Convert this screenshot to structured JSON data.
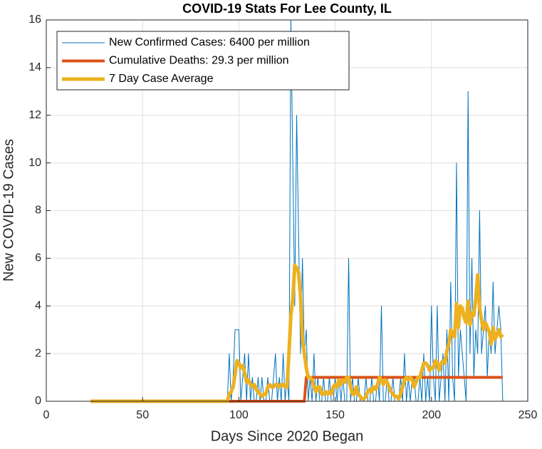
{
  "chart_data": {
    "type": "line",
    "title": "COVID-19 Stats For Lee County, IL",
    "xlabel": "Days Since 2020 Began",
    "ylabel": "New COVID-19 Cases",
    "xlim": [
      0,
      250
    ],
    "xticks": [
      0,
      50,
      100,
      150,
      200,
      250
    ],
    "ylim": [
      0,
      16
    ],
    "yticks": [
      0,
      2,
      4,
      6,
      8,
      10,
      12,
      14,
      16
    ],
    "grid": true,
    "legend": "northwest",
    "series": [
      {
        "name": "New Confirmed Cases: 6400 per million",
        "color": "#0072bd",
        "line_width": 1,
        "x": [
          23,
          93,
          94,
          95,
          96,
          97,
          98,
          99,
          100,
          101,
          102,
          103,
          104,
          105,
          106,
          107,
          108,
          109,
          110,
          111,
          112,
          113,
          114,
          115,
          116,
          117,
          118,
          119,
          120,
          121,
          122,
          123,
          124,
          125,
          126,
          127,
          128,
          129,
          130,
          131,
          132,
          133,
          134,
          135,
          136,
          137,
          138,
          139,
          140,
          141,
          142,
          143,
          144,
          145,
          146,
          147,
          148,
          149,
          150,
          151,
          152,
          153,
          154,
          155,
          156,
          157,
          158,
          159,
          160,
          161,
          162,
          163,
          164,
          165,
          166,
          167,
          168,
          169,
          170,
          171,
          172,
          173,
          174,
          175,
          176,
          177,
          178,
          179,
          180,
          181,
          182,
          183,
          184,
          185,
          186,
          187,
          188,
          189,
          190,
          191,
          192,
          193,
          194,
          195,
          196,
          197,
          198,
          199,
          200,
          201,
          202,
          203,
          204,
          205,
          206,
          207,
          208,
          209,
          210,
          211,
          212,
          213,
          214,
          215,
          216,
          217,
          218,
          219,
          220,
          221,
          222,
          223,
          224,
          225,
          226,
          227,
          228,
          229,
          230,
          231,
          232,
          233,
          234,
          235,
          236,
          237
        ],
        "values": [
          0,
          0,
          0,
          2,
          0,
          1,
          3,
          3,
          3,
          0,
          1,
          2,
          0,
          2,
          0,
          1,
          0,
          0,
          1,
          0,
          1,
          0,
          0,
          1,
          0,
          0,
          1,
          2,
          0,
          1,
          0,
          2,
          0,
          1,
          0,
          16,
          10,
          4,
          12,
          7,
          2,
          6,
          2,
          3,
          0,
          1,
          0,
          2,
          0,
          1,
          0,
          0,
          1,
          0,
          0,
          1,
          0,
          0,
          1,
          0,
          1,
          0,
          1,
          0,
          0,
          6,
          0,
          1,
          0,
          0,
          1,
          0,
          0,
          0,
          1,
          0,
          0,
          1,
          0,
          0,
          1,
          0,
          4,
          0,
          0,
          1,
          0,
          0,
          1,
          0,
          0,
          0,
          1,
          0,
          2,
          0,
          1,
          0,
          1,
          1,
          0,
          0,
          1,
          0,
          2,
          0,
          1,
          0,
          4,
          1,
          0,
          4,
          0,
          1,
          2,
          0,
          3,
          0,
          5,
          1,
          0,
          10,
          1,
          3,
          2,
          1,
          0,
          13,
          2,
          6,
          1,
          3,
          2,
          8,
          2,
          3,
          4,
          1,
          3,
          2,
          5,
          2,
          3,
          4,
          3,
          0
        ]
      },
      {
        "name": "Cumulative Deaths: 29.3 per million",
        "color": "#d95319",
        "line_width": 4,
        "x": [
          23,
          134,
          135,
          237
        ],
        "values": [
          0,
          0,
          1,
          1
        ]
      },
      {
        "name": "7 Day Case Average",
        "color": "#edb120",
        "line_width": 5,
        "x": [
          23,
          93,
          94,
          95,
          96,
          97,
          98,
          99,
          100,
          101,
          102,
          103,
          104,
          105,
          106,
          107,
          108,
          109,
          110,
          111,
          112,
          113,
          114,
          115,
          116,
          117,
          118,
          119,
          120,
          121,
          122,
          123,
          124,
          125,
          126,
          127,
          128,
          129,
          130,
          131,
          132,
          133,
          134,
          135,
          136,
          137,
          138,
          139,
          140,
          141,
          142,
          143,
          144,
          145,
          146,
          147,
          148,
          149,
          150,
          151,
          152,
          153,
          154,
          155,
          156,
          157,
          158,
          159,
          160,
          161,
          162,
          163,
          164,
          165,
          166,
          167,
          168,
          169,
          170,
          171,
          172,
          173,
          174,
          175,
          176,
          177,
          178,
          179,
          180,
          181,
          182,
          183,
          184,
          185,
          186,
          187,
          188,
          189,
          190,
          191,
          192,
          193,
          194,
          195,
          196,
          197,
          198,
          199,
          200,
          201,
          202,
          203,
          204,
          205,
          206,
          207,
          208,
          209,
          210,
          211,
          212,
          213,
          214,
          215,
          216,
          217,
          218,
          219,
          220,
          221,
          222,
          223,
          224,
          225,
          226,
          227,
          228,
          229,
          230,
          231,
          232,
          233,
          234,
          235,
          236,
          237
        ],
        "values": [
          0,
          0,
          0,
          0.3,
          0.4,
          0.6,
          1.1,
          1.7,
          1.6,
          1.4,
          1.5,
          1.2,
          0.8,
          0.9,
          0.7,
          0.6,
          0.7,
          0.5,
          0.4,
          0.3,
          0.2,
          0.3,
          0.3,
          0.6,
          0.7,
          0.6,
          0.6,
          0.7,
          0.7,
          0.6,
          0.7,
          0.7,
          0.6,
          0.6,
          2.0,
          3.6,
          4.3,
          5.7,
          5.6,
          5.4,
          4.4,
          2.6,
          2.0,
          1.4,
          1.0,
          1.0,
          0.9,
          0.6,
          0.4,
          0.6,
          0.6,
          0.3,
          0.3,
          0.4,
          0.3,
          0.4,
          0.3,
          0.6,
          0.7,
          0.6,
          0.9,
          0.7,
          0.9,
          0.8,
          1.0,
          1.0,
          0.6,
          0.3,
          0.3,
          0.6,
          0.3,
          0.2,
          0.1,
          0.1,
          0.2,
          0.4,
          0.5,
          0.4,
          0.6,
          0.5,
          0.7,
          1.0,
          0.9,
          0.7,
          0.9,
          0.8,
          0.6,
          0.4,
          0.3,
          0.2,
          0.2,
          0.1,
          0.3,
          0.6,
          0.9,
          1.0,
          0.9,
          1.0,
          0.9,
          0.6,
          0.8,
          1.0,
          1.0,
          1.3,
          1.6,
          1.6,
          1.5,
          1.3,
          1.4,
          1.4,
          1.7,
          1.6,
          1.3,
          1.6,
          1.7,
          1.6,
          2.1,
          2.4,
          3.0,
          2.8,
          2.7,
          4.1,
          3.1,
          4.0,
          3.9,
          3.5,
          3.3,
          4.2,
          3.2,
          3.7,
          3.6,
          4.3,
          5.3,
          3.9,
          3.4,
          3.0,
          3.3,
          3.1,
          2.9,
          2.4,
          3.1,
          2.6,
          2.8,
          3.0,
          2.7,
          2.8
        ]
      }
    ]
  }
}
